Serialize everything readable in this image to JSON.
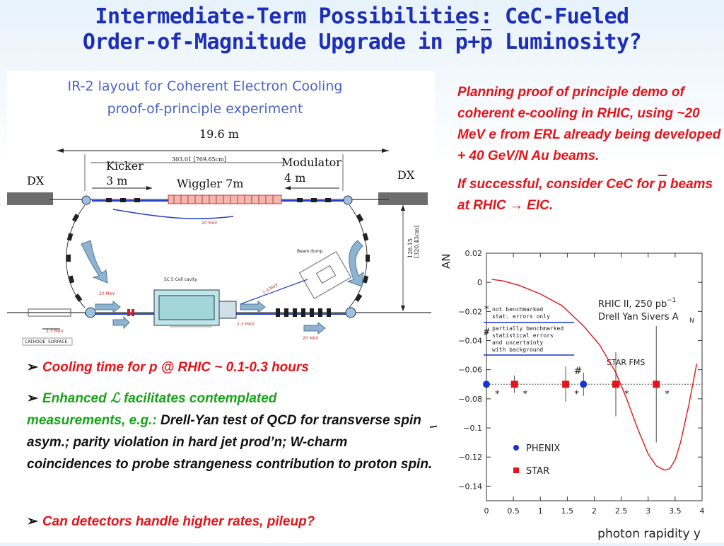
{
  "title": {
    "line1": "Intermediate-Term Possibilities: CeC-Fueled",
    "line2_prefix": "Order-of-Magnitude Upgrade in ",
    "p1": "p",
    "plus": "+",
    "p2": "p",
    "line2_suffix": " Luminosity?"
  },
  "layout": {
    "caption_line1": "IR-2 layout for Coherent Electron Cooling",
    "caption_line2": "proof-of-principle experiment",
    "length": "19.6 m",
    "inner_length": "303.01 [769.65cm]",
    "kicker": "Kicker",
    "kicker_len": "3 m",
    "wiggler": "Wiggler 7m",
    "modulator": "Modulator",
    "modulator_len": "4 m",
    "dx_left": "DX",
    "dx_right": "DX",
    "vert_dim": "126.15 [320.43cm]",
    "mev20_a": "20 MeV",
    "mev20_b": "20 MeV",
    "mev20_c": "20 MeV",
    "mev23_a": "2-3 MeV",
    "mev23_b": "2-3 MeV",
    "mev23_c": "2-3 MeV",
    "beam_dump": "Beam dump",
    "cavity": "SC 5 Cell cavity",
    "cathode": "CATHODE",
    "surface": "SURFACE"
  },
  "right_text": {
    "p1": "Planning proof of principle demo of coherent e-cooling in RHIC, using ~20 MeV e from ERL already being developed + 40 GeV/N Au beams.",
    "p2_prefix": "If successful, consider CeC for ",
    "p2_p": "p",
    "p2_suffix": " beams at RHIC → EIC."
  },
  "bullets": {
    "b1": "Cooling time for p @ RHIC ~ 0.1-0.3 hours",
    "b2_prefix": "Enhanced ",
    "b2_lsym": "ℒ",
    "b2_mid": " facilitates contemplated",
    "b2_line2": "measurements, e.g.: ",
    "b2_black": "Drell-Yan test of QCD for transverse spin asym.; parity violation in hard jet prod’n; W-charm coincidences to probe strangeness contribution to proton spin.",
    "b3": "Can detectors handle higher rates, pileup?"
  },
  "colors": {
    "title": "#1d2fb8",
    "red_text": "#e5141a",
    "green_text": "#17a317",
    "phenix": "#1733d1",
    "star": "#e5141a",
    "curve": "#e5141a",
    "legend_line": "#1733d1"
  },
  "chart_data": {
    "type": "scatter",
    "title": "",
    "xlabel": "photon rapidity y",
    "ylabel": "AN",
    "xlim": [
      0,
      4
    ],
    "ylim": [
      -0.15,
      0.02
    ],
    "x_ticks": [
      "0",
      "0.5",
      "1",
      "1.5",
      "2",
      "2.5",
      "3",
      "3.5",
      "4"
    ],
    "y_ticks": [
      "0.02",
      "0",
      "−0.02",
      "−0.04",
      "−0.06",
      "−0.08",
      "−0.1",
      "−0.12",
      "−0.14"
    ],
    "annotation_top_line1": "RHIC II, 250 pb",
    "annotation_top_sup": "−1",
    "annotation_top_line2": "Drell Yan Sivers A",
    "annotation_top_sub": "N",
    "note_star_sym": "*",
    "note_star_line1": "not benchmarked",
    "note_star_line2": "stat. errors only",
    "note_hash_sym": "#",
    "note_hash_line1": "partially benchmarked",
    "note_hash_line2": "statistical errors",
    "note_hash_line3": "and uncertainty",
    "note_hash_line4": "with background",
    "star_fms": "STAR FMS",
    "baseline_y": -0.07,
    "series": [
      {
        "name": "PHENIX",
        "points": [
          {
            "x": 0.0,
            "y": -0.07,
            "err": 0.012,
            "mark": "*"
          },
          {
            "x": 1.8,
            "y": -0.07,
            "err": 0.008,
            "mark": ""
          }
        ]
      },
      {
        "name": "STAR",
        "points": [
          {
            "x": 0.52,
            "y": -0.07,
            "err": 0.006,
            "mark": "*"
          },
          {
            "x": 1.47,
            "y": -0.07,
            "err": 0.012,
            "mark": "*"
          },
          {
            "x": 2.4,
            "y": -0.07,
            "err": 0.022,
            "mark": "*"
          },
          {
            "x": 3.15,
            "y": -0.07,
            "err": 0.04,
            "mark": "*"
          }
        ]
      }
    ],
    "hash_marker": {
      "x": 1.7,
      "y": -0.062,
      "label": "#"
    },
    "curve": {
      "name": "Drell Yan Sivers AN",
      "x": [
        0.1,
        0.3,
        0.6,
        1.0,
        1.4,
        1.8,
        2.1,
        2.4,
        2.6,
        2.8,
        3.0,
        3.15,
        3.3,
        3.4,
        3.5,
        3.6,
        3.75,
        3.9
      ],
      "y": [
        0.002,
        0.001,
        -0.002,
        -0.008,
        -0.016,
        -0.03,
        -0.043,
        -0.062,
        -0.08,
        -0.1,
        -0.118,
        -0.126,
        -0.129,
        -0.128,
        -0.122,
        -0.11,
        -0.085,
        -0.056
      ]
    }
  }
}
